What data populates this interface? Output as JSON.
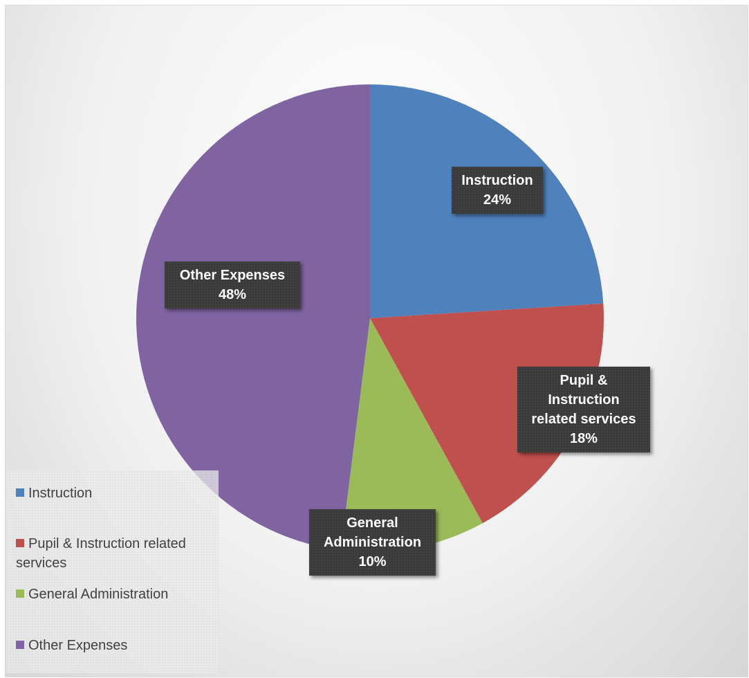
{
  "chart_data": {
    "type": "pie",
    "title": "",
    "categories": [
      "Instruction",
      "Pupil & Instruction related services",
      "General Administration",
      "Other Expenses"
    ],
    "values": [
      24,
      18,
      10,
      48
    ],
    "percent_labels": [
      "24%",
      "18%",
      "10%",
      "48%"
    ],
    "colors": [
      "#4f81bd",
      "#c0504d",
      "#9bbb59",
      "#8064a2"
    ],
    "start_angle_deg": 0,
    "direction": "clockwise",
    "legend": {
      "placement": "bottom-left",
      "entries": [
        "Instruction",
        "Pupil & Instruction related services",
        "General Administration",
        "Other Expenses"
      ]
    },
    "data_labels": [
      {
        "lines": [
          "Instruction"
        ],
        "percent": "24%"
      },
      {
        "lines": [
          "Pupil &",
          "Instruction",
          "related services"
        ],
        "percent": "18%"
      },
      {
        "lines": [
          "General",
          "Administration"
        ],
        "percent": "10%"
      },
      {
        "lines": [
          "Other Expenses"
        ],
        "percent": "48%"
      }
    ]
  }
}
